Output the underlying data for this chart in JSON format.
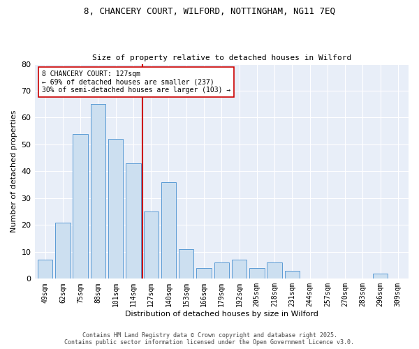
{
  "title1": "8, CHANCERY COURT, WILFORD, NOTTINGHAM, NG11 7EQ",
  "title2": "Size of property relative to detached houses in Wilford",
  "xlabel": "Distribution of detached houses by size in Wilford",
  "ylabel": "Number of detached properties",
  "categories": [
    "49sqm",
    "62sqm",
    "75sqm",
    "88sqm",
    "101sqm",
    "114sqm",
    "127sqm",
    "140sqm",
    "153sqm",
    "166sqm",
    "179sqm",
    "192sqm",
    "205sqm",
    "218sqm",
    "231sqm",
    "244sqm",
    "257sqm",
    "270sqm",
    "283sqm",
    "296sqm",
    "309sqm"
  ],
  "values": [
    7,
    21,
    54,
    65,
    52,
    43,
    25,
    36,
    11,
    4,
    6,
    7,
    4,
    6,
    3,
    0,
    0,
    0,
    0,
    2,
    0
  ],
  "bar_color": "#ccdff0",
  "bar_edge_color": "#5b9bd5",
  "highlight_index": 6,
  "highlight_line_color": "#cc0000",
  "annotation_line1": "8 CHANCERY COURT: 127sqm",
  "annotation_line2": "← 69% of detached houses are smaller (237)",
  "annotation_line3": "30% of semi-detached houses are larger (103) →",
  "annotation_box_color": "#ffffff",
  "annotation_box_edge": "#cc0000",
  "ylim": [
    0,
    80
  ],
  "yticks": [
    0,
    10,
    20,
    30,
    40,
    50,
    60,
    70,
    80
  ],
  "background_color": "#e8eef8",
  "footer1": "Contains HM Land Registry data © Crown copyright and database right 2025.",
  "footer2": "Contains public sector information licensed under the Open Government Licence v3.0."
}
